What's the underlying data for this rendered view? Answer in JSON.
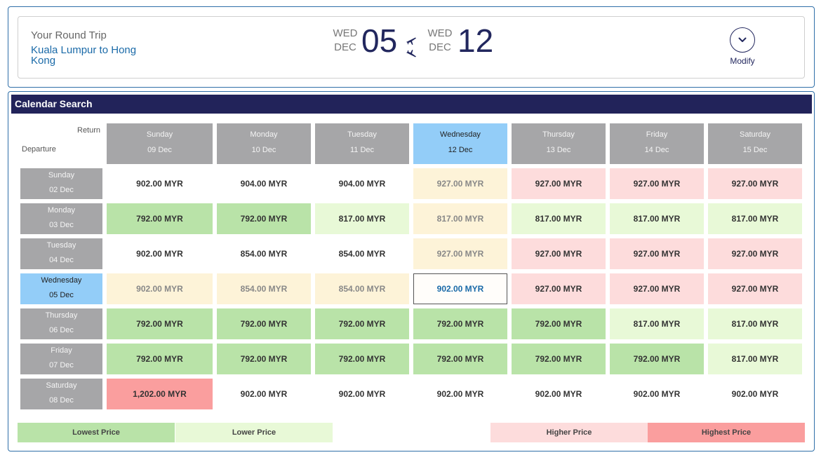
{
  "trip": {
    "title": "Your Round Trip",
    "route": "Kuala Lumpur to Hong Kong",
    "departure": {
      "weekday": "WED",
      "month": "DEC",
      "day": "05"
    },
    "return": {
      "weekday": "WED",
      "month": "DEC",
      "day": "12"
    },
    "modify_label": "Modify"
  },
  "calendar": {
    "header": "Calendar Search",
    "return_label": "Return",
    "departure_label": "Departure",
    "columns": [
      {
        "day": "Sunday",
        "date": "09 Dec"
      },
      {
        "day": "Monday",
        "date": "10 Dec"
      },
      {
        "day": "Tuesday",
        "date": "11 Dec"
      },
      {
        "day": "Wednesday",
        "date": "12 Dec"
      },
      {
        "day": "Thursday",
        "date": "13 Dec"
      },
      {
        "day": "Friday",
        "date": "14 Dec"
      },
      {
        "day": "Saturday",
        "date": "15 Dec"
      }
    ],
    "rows": [
      {
        "day": "Sunday",
        "date": "02 Dec",
        "prices": [
          "902.00 MYR",
          "904.00 MYR",
          "904.00 MYR",
          "927.00 MYR",
          "927.00 MYR",
          "927.00 MYR",
          "927.00 MYR"
        ]
      },
      {
        "day": "Monday",
        "date": "03 Dec",
        "prices": [
          "792.00 MYR",
          "792.00 MYR",
          "817.00 MYR",
          "817.00 MYR",
          "817.00 MYR",
          "817.00 MYR",
          "817.00 MYR"
        ]
      },
      {
        "day": "Tuesday",
        "date": "04 Dec",
        "prices": [
          "902.00 MYR",
          "854.00 MYR",
          "854.00 MYR",
          "927.00 MYR",
          "927.00 MYR",
          "927.00 MYR",
          "927.00 MYR"
        ]
      },
      {
        "day": "Wednesday",
        "date": "05 Dec",
        "prices": [
          "902.00 MYR",
          "854.00 MYR",
          "854.00 MYR",
          "902.00 MYR",
          "927.00 MYR",
          "927.00 MYR",
          "927.00 MYR"
        ]
      },
      {
        "day": "Thursday",
        "date": "06 Dec",
        "prices": [
          "792.00 MYR",
          "792.00 MYR",
          "792.00 MYR",
          "792.00 MYR",
          "792.00 MYR",
          "817.00 MYR",
          "817.00 MYR"
        ]
      },
      {
        "day": "Friday",
        "date": "07 Dec",
        "prices": [
          "792.00 MYR",
          "792.00 MYR",
          "792.00 MYR",
          "792.00 MYR",
          "792.00 MYR",
          "792.00 MYR",
          "817.00 MYR"
        ]
      },
      {
        "day": "Saturday",
        "date": "08 Dec",
        "prices": [
          "1,202.00 MYR",
          "902.00 MYR",
          "902.00 MYR",
          "902.00 MYR",
          "902.00 MYR",
          "902.00 MYR",
          "902.00 MYR"
        ]
      }
    ]
  },
  "legend": {
    "lowest": "Lowest Price",
    "lower": "Lower Price",
    "higher": "Higher Price",
    "highest": "Highest Price"
  },
  "colors": {
    "header_bg": "#22235a",
    "lowest": "#b9e3a8",
    "lower": "#e8f9d7",
    "higher": "#fddcdc",
    "highest": "#fa9e9e",
    "selected_header": "#93cdf8"
  }
}
